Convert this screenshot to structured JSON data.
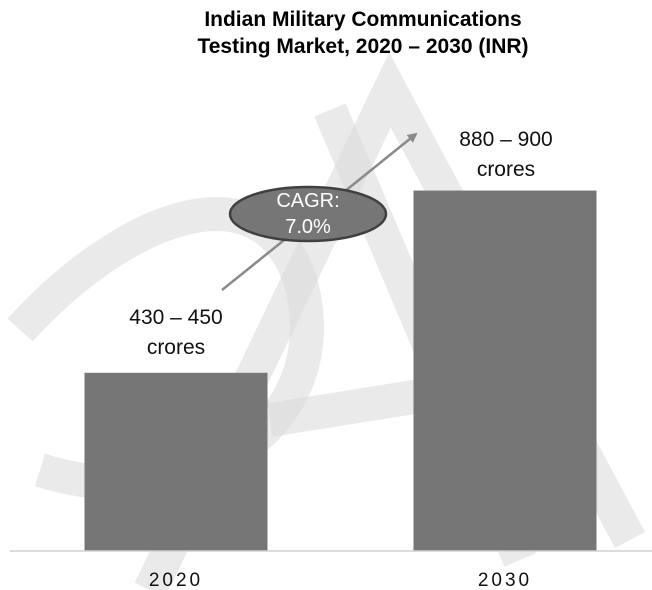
{
  "chart_data": {
    "type": "bar",
    "title_lines": [
      "Indian Military Communications",
      "Testing Market, 2020 – 2030 (INR)"
    ],
    "categories": [
      "2020",
      "2030"
    ],
    "values": [
      440,
      890
    ],
    "value_labels": [
      [
        "430 – 450",
        "crores"
      ],
      [
        "880 – 900",
        "crores"
      ]
    ],
    "ylim": [
      0,
      1000
    ],
    "bar_color": "#767676",
    "annotation": {
      "lines": [
        "CAGR:",
        "7.0%"
      ],
      "fill": "#767676",
      "stroke": "#404040"
    },
    "arrow_color": "#8a8a8a",
    "grid": false
  }
}
